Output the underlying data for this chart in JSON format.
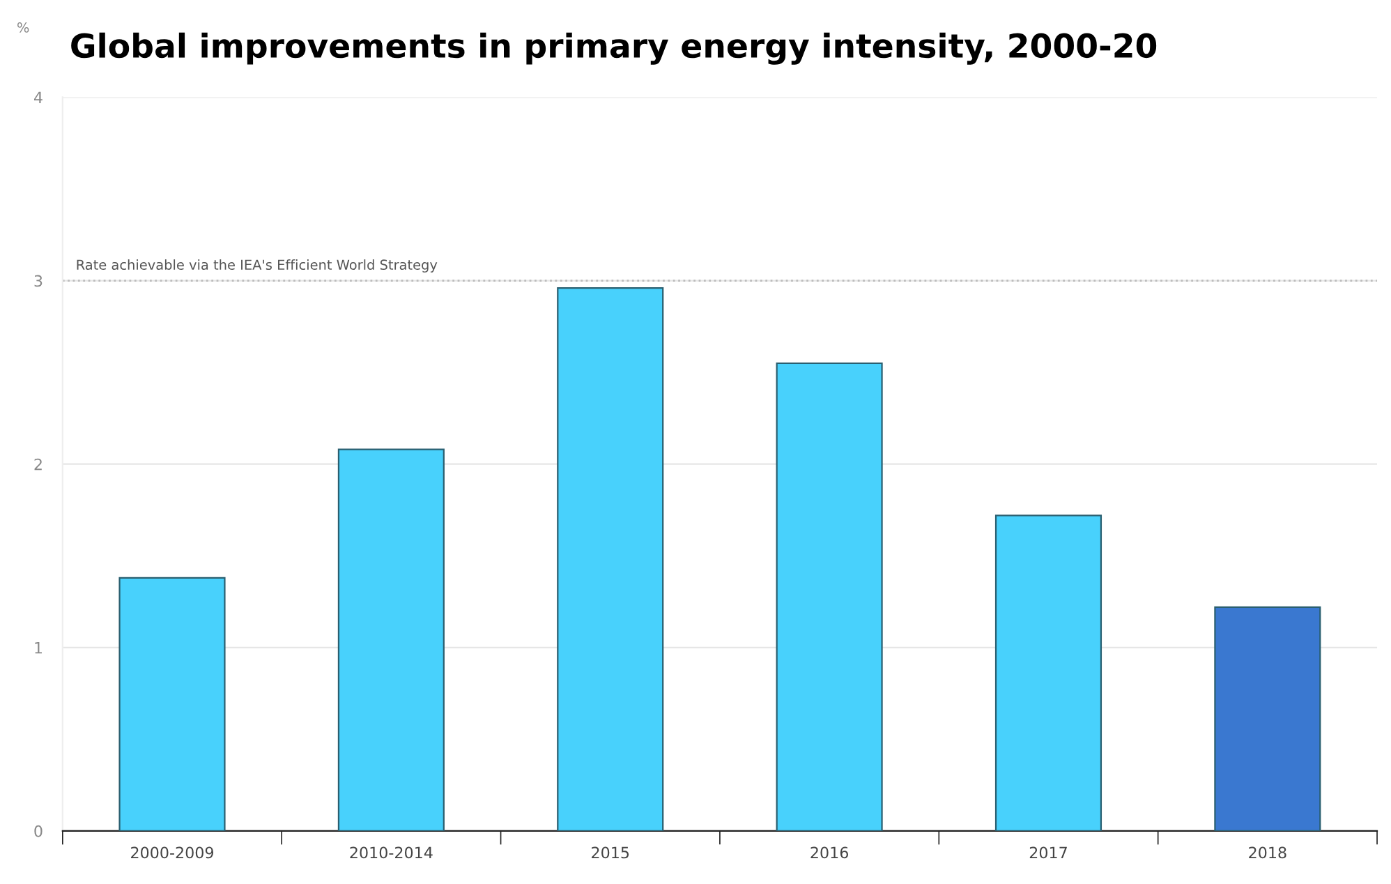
{
  "chart_data": {
    "type": "bar",
    "title": "Global improvements in primary energy intensity, 2000-20",
    "ylabel": "%",
    "categories": [
      "2000-2009",
      "2010-2014",
      "2015",
      "2016",
      "2017",
      "2018"
    ],
    "values": [
      1.38,
      2.08,
      2.96,
      2.55,
      1.72,
      1.22
    ],
    "colors": [
      "#48d1fc",
      "#48d1fc",
      "#48d1fc",
      "#48d1fc",
      "#48d1fc",
      "#3a78d0"
    ],
    "ylim": [
      0,
      4
    ],
    "yticks": [
      0,
      1,
      2,
      3,
      4
    ],
    "grid": "y",
    "legend": false,
    "ref_lines": [
      {
        "axis": "y",
        "value": 3,
        "label": "Rate achievable via the IEA's Efficient World Strategy",
        "color": "#bbbbbb",
        "line_style": "dotted"
      }
    ]
  }
}
